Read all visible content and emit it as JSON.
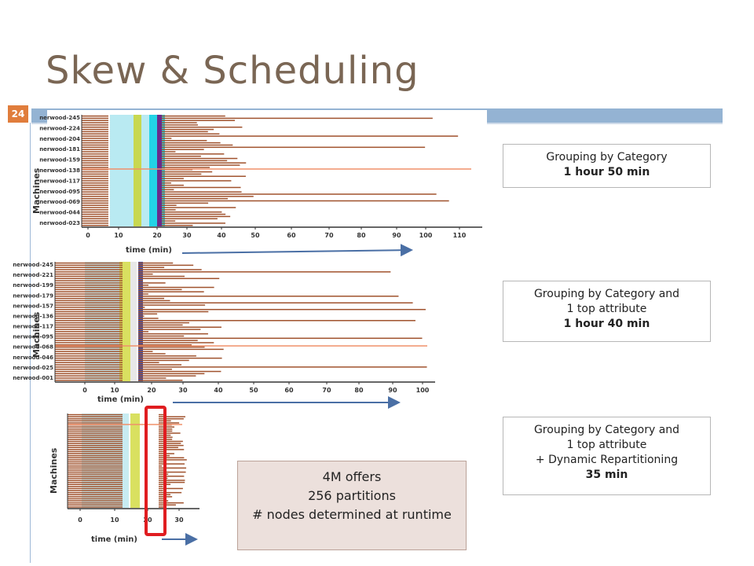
{
  "title": "Skew & Scheduling",
  "slide_number": "24",
  "charts": [
    {
      "ylabel": "Machines",
      "xlabel": "time (min)",
      "machine_labels": [
        "nerwood-245",
        "nerwood-224",
        "nerwood-204",
        "nerwood-181",
        "nerwood-159",
        "nerwood-138",
        "nerwood-117",
        "nerwood-095",
        "nerwood-069",
        "nerwood-044",
        "nerwood-023"
      ],
      "x_ticks": [
        "0",
        "10",
        "20",
        "30",
        "40",
        "50",
        "60",
        "70",
        "80",
        "90",
        "100",
        "110"
      ]
    },
    {
      "ylabel": "Machines",
      "xlabel": "time (min)",
      "machine_labels": [
        "nerwood-245",
        "nerwood-221",
        "nerwood-199",
        "nerwood-179",
        "nerwood-157",
        "nerwood-136",
        "nerwood-117",
        "nerwood-095",
        "nerwood-068",
        "nerwood-046",
        "nerwood-025",
        "nerwood-001"
      ],
      "x_ticks": [
        "0",
        "10",
        "20",
        "30",
        "40",
        "50",
        "60",
        "70",
        "80",
        "90",
        "100"
      ]
    },
    {
      "ylabel": "Machines",
      "xlabel": "time (min)",
      "x_ticks": [
        "0",
        "10",
        "20",
        "30"
      ]
    }
  ],
  "infoboxes": [
    {
      "lines": [
        "Grouping by Category"
      ],
      "bold": "1 hour 50 min"
    },
    {
      "lines": [
        "Grouping by Category and",
        "1 top attribute"
      ],
      "bold": "1 hour 40 min"
    },
    {
      "lines": [
        "Grouping by Category and",
        "1 top attribute",
        "+ Dynamic Repartitioning"
      ],
      "bold": "35 min"
    }
  ],
  "note": {
    "line1": "4M offers",
    "line2": "256 partitions",
    "line3": "# nodes determined at runtime"
  },
  "colors": {
    "title": "#7a6654",
    "accent_bar": "#94b3d3",
    "slide_number_bg": "#e07d3c",
    "task_bar": "#a0522d",
    "highlight": "#e01d20",
    "arrow": "#4a6fa5"
  }
}
